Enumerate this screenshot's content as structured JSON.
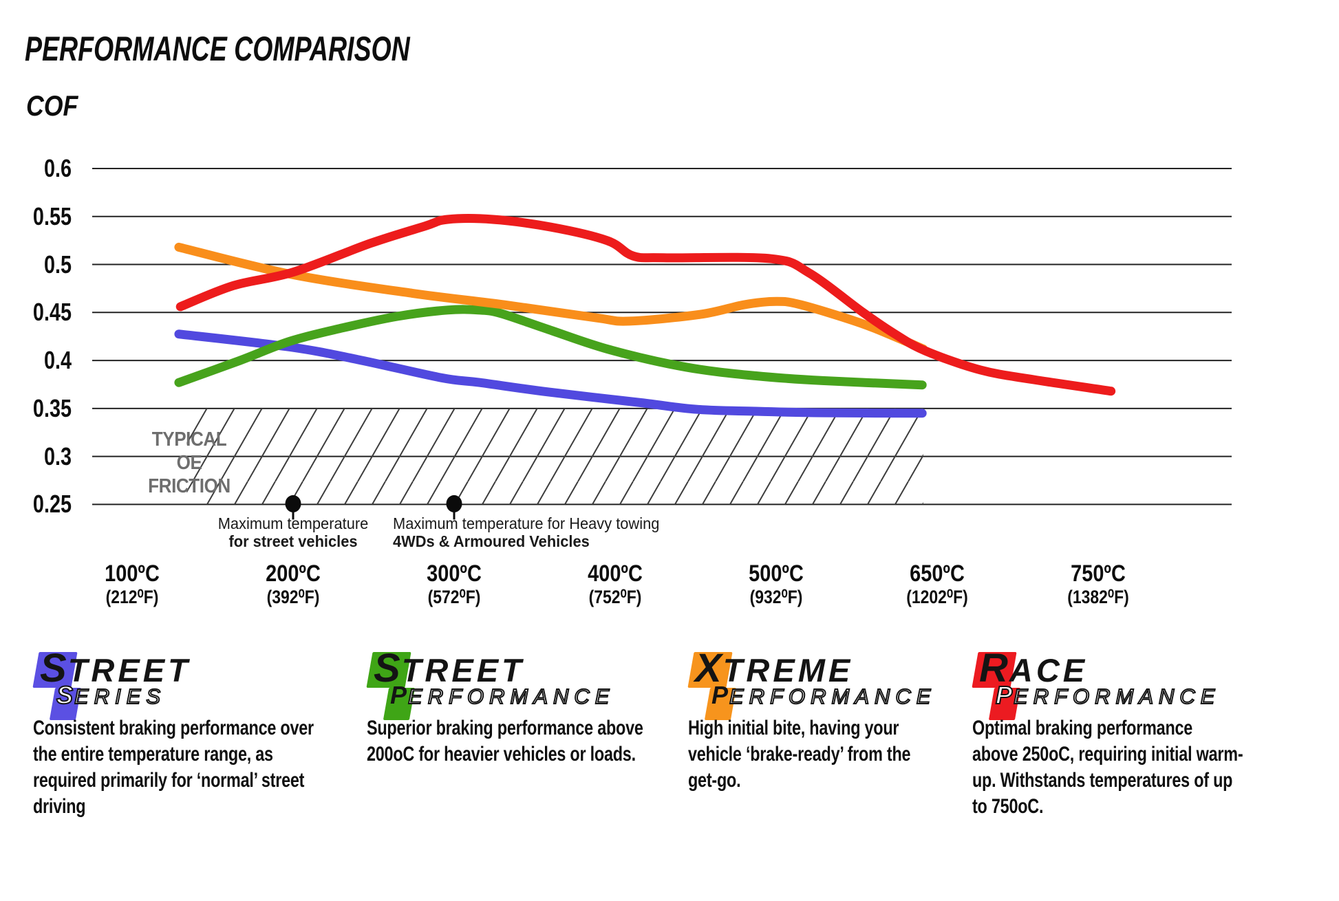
{
  "header": {
    "title": "PERFORMANCE COMPARISON",
    "y_axis_title": "COF"
  },
  "chart_data": {
    "type": "line",
    "title": "PERFORMANCE COMPARISON",
    "ylabel": "COF",
    "grid": true,
    "legend_position": "none",
    "ylim": [
      0.25,
      0.6
    ],
    "y_ticks": [
      {
        "value": 0.6,
        "label": "0.6"
      },
      {
        "value": 0.55,
        "label": "0.55"
      },
      {
        "value": 0.5,
        "label": "0.5"
      },
      {
        "value": 0.45,
        "label": "0.45"
      },
      {
        "value": 0.4,
        "label": "0.4"
      },
      {
        "value": 0.35,
        "label": "0.35"
      },
      {
        "value": 0.3,
        "label": "0.3"
      },
      {
        "value": 0.25,
        "label": "0.25"
      }
    ],
    "x_ticks": [
      {
        "temp_c": 100,
        "label_c": "100ºC",
        "label_f": "(212⁰F)"
      },
      {
        "temp_c": 200,
        "label_c": "200ºC",
        "label_f": "(392⁰F)"
      },
      {
        "temp_c": 300,
        "label_c": "300ºC",
        "label_f": "(572⁰F)"
      },
      {
        "temp_c": 400,
        "label_c": "400ºC",
        "label_f": "(752⁰F)"
      },
      {
        "temp_c": 500,
        "label_c": "500ºC",
        "label_f": "(932⁰F)"
      },
      {
        "temp_c": 650,
        "label_c": "650ºC",
        "label_f": "(1202⁰F)"
      },
      {
        "temp_c": 750,
        "label_c": "750ºC",
        "label_f": "(1382⁰F)"
      }
    ],
    "series": [
      {
        "name": "Street Series",
        "color": "#5149DF",
        "points": [
          [
            129,
            0.4275
          ],
          [
            198,
            0.414
          ],
          [
            240,
            0.401
          ],
          [
            292,
            0.382
          ],
          [
            316,
            0.377
          ],
          [
            359,
            0.367
          ],
          [
            416,
            0.356
          ],
          [
            451,
            0.349
          ],
          [
            487,
            0.347
          ],
          [
            543,
            0.3455
          ],
          [
            636,
            0.345
          ]
        ]
      },
      {
        "name": "Street Performance",
        "color": "#47A31C",
        "points": [
          [
            129,
            0.377
          ],
          [
            167,
            0.4
          ],
          [
            198,
            0.42
          ],
          [
            231,
            0.434
          ],
          [
            265,
            0.446
          ],
          [
            296,
            0.4525
          ],
          [
            315,
            0.4525
          ],
          [
            329,
            0.449
          ],
          [
            359,
            0.432
          ],
          [
            397,
            0.411
          ],
          [
            444,
            0.393
          ],
          [
            487,
            0.384
          ],
          [
            543,
            0.379
          ],
          [
            636,
            0.3745
          ]
        ]
      },
      {
        "name": "Xtreme Performance",
        "color": "#F98E1B",
        "points": [
          [
            129,
            0.518
          ],
          [
            198,
            0.49
          ],
          [
            274,
            0.47
          ],
          [
            331,
            0.458
          ],
          [
            388,
            0.4445
          ],
          [
            409,
            0.441
          ],
          [
            453,
            0.448
          ],
          [
            480,
            0.458
          ],
          [
            500,
            0.4615
          ],
          [
            523,
            0.458
          ],
          [
            576,
            0.44
          ],
          [
            608,
            0.426
          ],
          [
            637,
            0.412
          ]
        ]
      },
      {
        "name": "Race Performance",
        "color": "#ED1C1C",
        "points": [
          [
            130,
            0.456
          ],
          [
            163,
            0.478
          ],
          [
            200,
            0.492
          ],
          [
            248,
            0.522
          ],
          [
            282,
            0.54
          ],
          [
            296,
            0.547
          ],
          [
            324,
            0.547
          ],
          [
            360,
            0.539
          ],
          [
            395,
            0.525
          ],
          [
            411,
            0.509
          ],
          [
            430,
            0.507
          ],
          [
            497,
            0.506
          ],
          [
            531,
            0.491
          ],
          [
            581,
            0.45
          ],
          [
            610,
            0.428
          ],
          [
            639,
            0.41
          ],
          [
            677,
            0.39
          ],
          [
            710,
            0.38
          ],
          [
            758,
            0.368
          ]
        ]
      }
    ],
    "oe_band": {
      "line1": "TYPICAL OE",
      "line2": "FRICTION",
      "cof_min": 0.25,
      "cof_max": 0.35,
      "temp_start": 134,
      "temp_end": 637,
      "hatch": true
    },
    "annotations": [
      {
        "temp_c": 200,
        "cof": 0.25,
        "line1": "Maximum temperature",
        "line2": "for street vehicles"
      },
      {
        "temp_c": 300,
        "cof": 0.25,
        "line1": "Maximum temperature for Heavy towing",
        "line2": "4WDs & Armoured Vehicles"
      }
    ]
  },
  "logos": [
    {
      "word1_first": "S",
      "word1_rest": "TREET",
      "word2_first": "S",
      "word2_rest": "ERIES",
      "color": "#5B50E3",
      "letter_style": "outline",
      "desc_lines": [
        "Consistent braking performance over",
        "the entire temperature range, as",
        "required primarily for ‘normal’ street",
        "driving"
      ]
    },
    {
      "word1_first": "S",
      "word1_rest": "TREET",
      "word2_first": "P",
      "word2_rest": "ERFORMANCE",
      "color": "#3FA516",
      "letter_style": "solid",
      "desc_lines": [
        "Superior braking performance above",
        "200oC for heavier vehicles or loads."
      ]
    },
    {
      "word1_first": "X",
      "word1_rest": "TREME",
      "word2_first": "P",
      "word2_rest": "ERFORMANCE",
      "color": "#F7941D",
      "letter_style": "solid",
      "desc_lines": [
        "High initial bite, having your",
        "vehicle ‘brake-ready’ from the",
        "get-go."
      ]
    },
    {
      "word1_first": "R",
      "word1_rest": "ACE",
      "word2_first": "P",
      "word2_rest": "ERFORMANCE",
      "color": "#EC1B21",
      "letter_style": "outline",
      "desc_lines": [
        "Optimal braking performance",
        "above 250oC, requiring initial warm-",
        "up. Withstands temperatures of up",
        "to 750oC."
      ]
    }
  ]
}
